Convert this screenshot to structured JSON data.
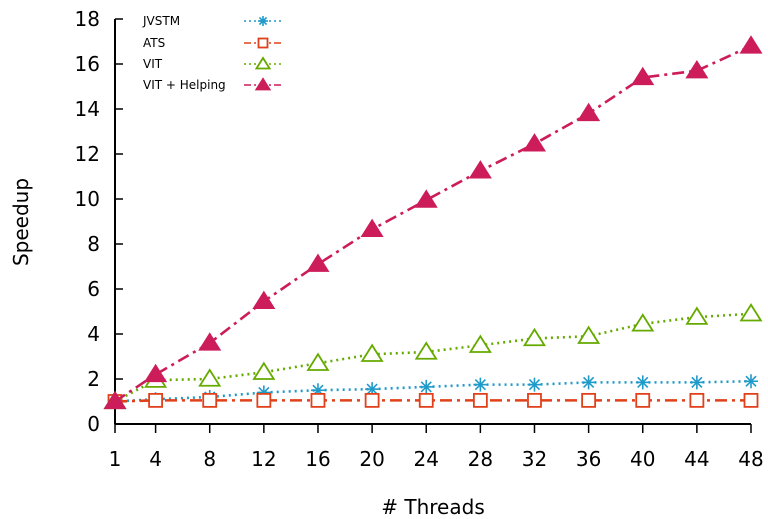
{
  "chart_data": {
    "type": "line",
    "title": "",
    "xlabel": "# Threads",
    "ylabel": "Speedup",
    "x": [
      1,
      4,
      8,
      12,
      16,
      20,
      24,
      28,
      32,
      36,
      40,
      44,
      48
    ],
    "x_ticks": [
      "1",
      "4",
      "8",
      "12",
      "16",
      "20",
      "24",
      "28",
      "32",
      "36",
      "40",
      "44",
      "48"
    ],
    "xlim": [
      1,
      48
    ],
    "ylim": [
      0,
      18
    ],
    "y_ticks": [
      "0",
      "2",
      "4",
      "6",
      "8",
      "10",
      "12",
      "14",
      "16",
      "18"
    ],
    "grid": false,
    "legend_position": "top-left",
    "series": [
      {
        "name": "JVSTM",
        "color": "#1f9ac9",
        "marker": "asterisk",
        "dash": "dotted",
        "values": [
          1.0,
          1.1,
          1.2,
          1.4,
          1.5,
          1.55,
          1.65,
          1.75,
          1.75,
          1.85,
          1.85,
          1.85,
          1.9
        ]
      },
      {
        "name": "ATS",
        "color": "#e0401a",
        "marker": "square",
        "dash": "dashdot",
        "values": [
          1.0,
          1.05,
          1.05,
          1.05,
          1.05,
          1.05,
          1.05,
          1.05,
          1.05,
          1.05,
          1.05,
          1.05,
          1.05
        ]
      },
      {
        "name": "VIT",
        "color": "#66aa00",
        "marker": "triangle-open",
        "dash": "dotted",
        "values": [
          1.0,
          1.95,
          2.0,
          2.3,
          2.7,
          3.1,
          3.2,
          3.5,
          3.8,
          3.9,
          4.45,
          4.75,
          4.9
        ]
      },
      {
        "name": "VIT + Helping",
        "color": "#cc1c5a",
        "marker": "triangle-filled",
        "dash": "dashdot",
        "values": [
          1.0,
          2.2,
          3.6,
          5.45,
          7.1,
          8.65,
          9.95,
          11.25,
          12.45,
          13.8,
          15.4,
          15.7,
          16.8
        ]
      }
    ]
  }
}
